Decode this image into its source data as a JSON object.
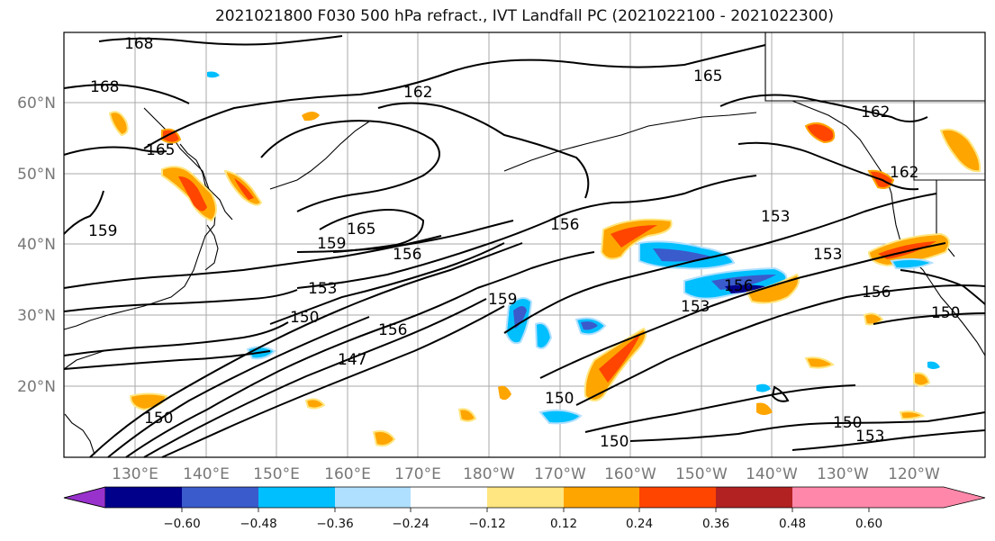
{
  "title": "2021021800 F030 500 hPa refract., IVT Landfall PC (2021022100 - 2021022300)",
  "lat_ticks": [
    "60°N",
    "50°N",
    "40°N",
    "30°N",
    "20°N"
  ],
  "lon_ticks": [
    "130°E",
    "140°E",
    "150°E",
    "160°E",
    "170°E",
    "180°W",
    "170°W",
    "160°W",
    "150°W",
    "140°W",
    "130°W",
    "120°W"
  ],
  "contour_labels": [
    "168",
    "168",
    "165",
    "165",
    "165",
    "162",
    "162",
    "162",
    "159",
    "159",
    "159",
    "156",
    "156",
    "156",
    "156",
    "156",
    "153",
    "153",
    "153",
    "153",
    "150",
    "150",
    "150",
    "150",
    "150",
    "147",
    "150",
    "153"
  ],
  "colorbar": {
    "tick_labels": [
      "−0.60",
      "−0.48",
      "−0.36",
      "−0.24",
      "−0.12",
      "0.12",
      "0.24",
      "0.36",
      "0.48",
      "0.60"
    ],
    "colors": [
      "#9932CC",
      "#00008B",
      "#3A5BCB",
      "#00BFFF",
      "#B0E0FF",
      "#FFFFFF",
      "#FFE680",
      "#FFA500",
      "#FF4500",
      "#B22222",
      "#FF88AA"
    ]
  }
}
